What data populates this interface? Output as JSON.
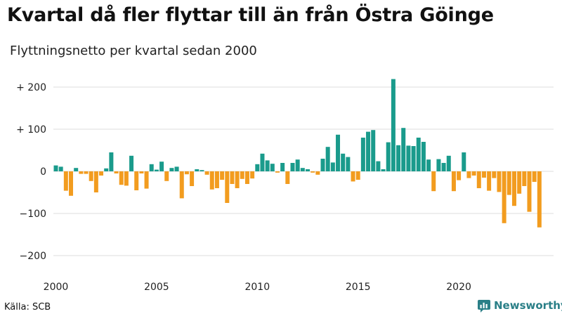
{
  "header": {
    "title": "Kvartal då fler flyttar till än från Östra Göinge",
    "subtitle": "Flyttningsnetto per kvartal sedan 2000"
  },
  "footer": {
    "source": "Källa: SCB",
    "brand": "Newsworthy"
  },
  "colors": {
    "positive": "#1a9b8c",
    "negative": "#f29c1f",
    "grid": "#dddddd",
    "brand": "#2a7f87"
  },
  "chart_data": {
    "type": "bar",
    "x_start_year": 2000,
    "x_tick_years": [
      2000,
      2005,
      2010,
      2015,
      2020
    ],
    "x_tick_labels": [
      "2000",
      "2005",
      "2010",
      "2015",
      "2020"
    ],
    "y_ticks": [
      200,
      100,
      0,
      -100,
      -200
    ],
    "y_tick_labels": [
      "+ 200",
      "+ 100",
      "0",
      "−100",
      "−200"
    ],
    "ylim": [
      -230,
      230
    ],
    "grid": true,
    "values": [
      14,
      11,
      -46,
      -58,
      8,
      -6,
      -6,
      -23,
      -50,
      -10,
      7,
      45,
      -5,
      -32,
      -34,
      37,
      -45,
      -5,
      -41,
      17,
      4,
      23,
      -23,
      8,
      11,
      -64,
      -7,
      -35,
      5,
      3,
      -8,
      -43,
      -40,
      -20,
      -75,
      -30,
      -40,
      -18,
      -30,
      -17,
      17,
      42,
      26,
      18,
      -3,
      20,
      -30,
      20,
      28,
      8,
      5,
      -3,
      -8,
      30,
      58,
      21,
      87,
      42,
      34,
      -24,
      -20,
      80,
      94,
      98,
      24,
      5,
      69,
      219,
      62,
      103,
      61,
      60,
      80,
      70,
      28,
      -47,
      29,
      20,
      37,
      -47,
      -21,
      45,
      -16,
      -10,
      -40,
      -15,
      -46,
      -16,
      -49,
      -123,
      -56,
      -82,
      -53,
      -35,
      -96,
      -25,
      -133
    ]
  }
}
